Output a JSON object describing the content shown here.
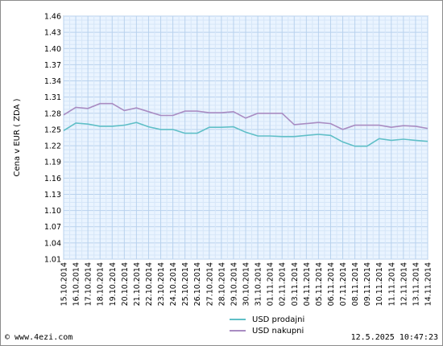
{
  "chart_data": {
    "type": "line",
    "ylabel": "Cena v EUR ( ZDA )",
    "ylim": [
      1.01,
      1.46
    ],
    "yticks": [
      "1.46",
      "1.43",
      "1.40",
      "1.37",
      "1.34",
      "1.31",
      "1.28",
      "1.25",
      "1.22",
      "1.19",
      "1.16",
      "1.13",
      "1.10",
      "1.07",
      "1.04",
      "1.01"
    ],
    "grid": true,
    "legend_position": "bottom-center",
    "categories": [
      "15.10.2014",
      "16.10.2014",
      "17.10.2014",
      "18.10.2014",
      "19.10.2014",
      "20.10.2014",
      "21.10.2014",
      "22.10.2014",
      "23.10.2014",
      "24.10.2014",
      "25.10.2014",
      "26.10.2014",
      "27.10.2014",
      "28.10.2014",
      "29.10.2014",
      "30.10.2014",
      "31.10.2014",
      "01.11.2014",
      "02.11.2014",
      "03.11.2014",
      "04.11.2014",
      "05.11.2014",
      "06.11.2014",
      "07.11.2014",
      "08.11.2014",
      "09.11.2014",
      "10.11.2014",
      "11.11.2014",
      "12.11.2014",
      "13.11.2014",
      "14.11.2014"
    ],
    "series": [
      {
        "name": "USD prodajni",
        "color": "#5fbfc7",
        "values": [
          1.248,
          1.262,
          1.26,
          1.256,
          1.256,
          1.258,
          1.263,
          1.255,
          1.25,
          1.25,
          1.243,
          1.243,
          1.254,
          1.254,
          1.255,
          1.245,
          1.238,
          1.238,
          1.237,
          1.237,
          1.239,
          1.241,
          1.239,
          1.227,
          1.219,
          1.219,
          1.233,
          1.23,
          1.232,
          1.23,
          1.228
        ]
      },
      {
        "name": "USD nakupni",
        "color": "#a98cc2",
        "values": [
          1.277,
          1.291,
          1.289,
          1.298,
          1.298,
          1.285,
          1.29,
          1.283,
          1.276,
          1.276,
          1.284,
          1.284,
          1.281,
          1.281,
          1.283,
          1.271,
          1.28,
          1.28,
          1.28,
          1.259,
          1.261,
          1.263,
          1.261,
          1.25,
          1.258,
          1.258,
          1.258,
          1.254,
          1.257,
          1.256,
          1.252
        ]
      }
    ]
  },
  "footer": {
    "left": "© www.4ezi.com",
    "right": "12.5.2025 10:47:23"
  }
}
